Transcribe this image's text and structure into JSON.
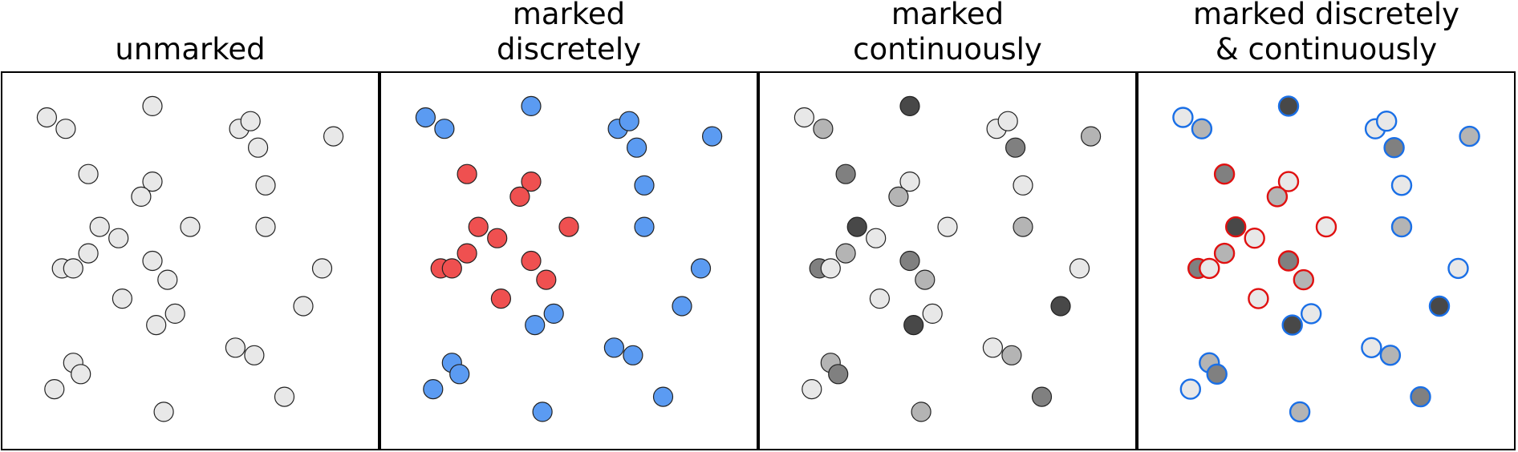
{
  "panels": [
    {
      "id": "unmarked",
      "title_lines": [
        "unmarked"
      ],
      "mode": "unmarked"
    },
    {
      "id": "discrete",
      "title_lines": [
        "marked",
        "discretely"
      ],
      "mode": "discrete"
    },
    {
      "id": "continuous",
      "title_lines": [
        "marked",
        "continuously"
      ],
      "mode": "continuous"
    },
    {
      "id": "both",
      "title_lines": [
        "marked discretely",
        "& continuously"
      ],
      "mode": "both"
    }
  ],
  "colors": {
    "background": "#ffffff",
    "border": "#000000",
    "text": "#000000",
    "point_stroke": "#222222",
    "unmarked_fill": "#e8e8e8",
    "class_a": "#ef5050",
    "class_a_ring": "#e01010",
    "class_b": "#5b9bf2",
    "class_b_ring": "#1a6fe6",
    "continuous_levels": [
      "#e8e8e8",
      "#b4b4b4",
      "#808080",
      "#484848"
    ]
  },
  "points": [
    {
      "x": 0.12,
      "y": 0.88,
      "cls": "b",
      "level": 0
    },
    {
      "x": 0.17,
      "y": 0.85,
      "cls": "b",
      "level": 1
    },
    {
      "x": 0.4,
      "y": 0.91,
      "cls": "b",
      "level": 3
    },
    {
      "x": 0.63,
      "y": 0.85,
      "cls": "b",
      "level": 0
    },
    {
      "x": 0.66,
      "y": 0.87,
      "cls": "b",
      "level": 0
    },
    {
      "x": 0.68,
      "y": 0.8,
      "cls": "b",
      "level": 2
    },
    {
      "x": 0.88,
      "y": 0.83,
      "cls": "b",
      "level": 1
    },
    {
      "x": 0.23,
      "y": 0.73,
      "cls": "a",
      "level": 2
    },
    {
      "x": 0.4,
      "y": 0.71,
      "cls": "a",
      "level": 0
    },
    {
      "x": 0.37,
      "y": 0.67,
      "cls": "a",
      "level": 1
    },
    {
      "x": 0.7,
      "y": 0.7,
      "cls": "b",
      "level": 0
    },
    {
      "x": 0.26,
      "y": 0.59,
      "cls": "a",
      "level": 3
    },
    {
      "x": 0.31,
      "y": 0.56,
      "cls": "a",
      "level": 0
    },
    {
      "x": 0.5,
      "y": 0.59,
      "cls": "a",
      "level": 0
    },
    {
      "x": 0.7,
      "y": 0.59,
      "cls": "b",
      "level": 1
    },
    {
      "x": 0.23,
      "y": 0.52,
      "cls": "a",
      "level": 1
    },
    {
      "x": 0.16,
      "y": 0.48,
      "cls": "a",
      "level": 2
    },
    {
      "x": 0.19,
      "y": 0.48,
      "cls": "a",
      "level": 0
    },
    {
      "x": 0.4,
      "y": 0.5,
      "cls": "a",
      "level": 2
    },
    {
      "x": 0.44,
      "y": 0.45,
      "cls": "a",
      "level": 1
    },
    {
      "x": 0.85,
      "y": 0.48,
      "cls": "b",
      "level": 0
    },
    {
      "x": 0.32,
      "y": 0.4,
      "cls": "a",
      "level": 0
    },
    {
      "x": 0.46,
      "y": 0.36,
      "cls": "b",
      "level": 0
    },
    {
      "x": 0.41,
      "y": 0.33,
      "cls": "b",
      "level": 3
    },
    {
      "x": 0.8,
      "y": 0.38,
      "cls": "b",
      "level": 3
    },
    {
      "x": 0.19,
      "y": 0.23,
      "cls": "b",
      "level": 1
    },
    {
      "x": 0.21,
      "y": 0.2,
      "cls": "b",
      "level": 2
    },
    {
      "x": 0.14,
      "y": 0.16,
      "cls": "b",
      "level": 0
    },
    {
      "x": 0.43,
      "y": 0.1,
      "cls": "b",
      "level": 1
    },
    {
      "x": 0.62,
      "y": 0.27,
      "cls": "b",
      "level": 0
    },
    {
      "x": 0.67,
      "y": 0.25,
      "cls": "b",
      "level": 1
    },
    {
      "x": 0.75,
      "y": 0.14,
      "cls": "b",
      "level": 2
    }
  ]
}
